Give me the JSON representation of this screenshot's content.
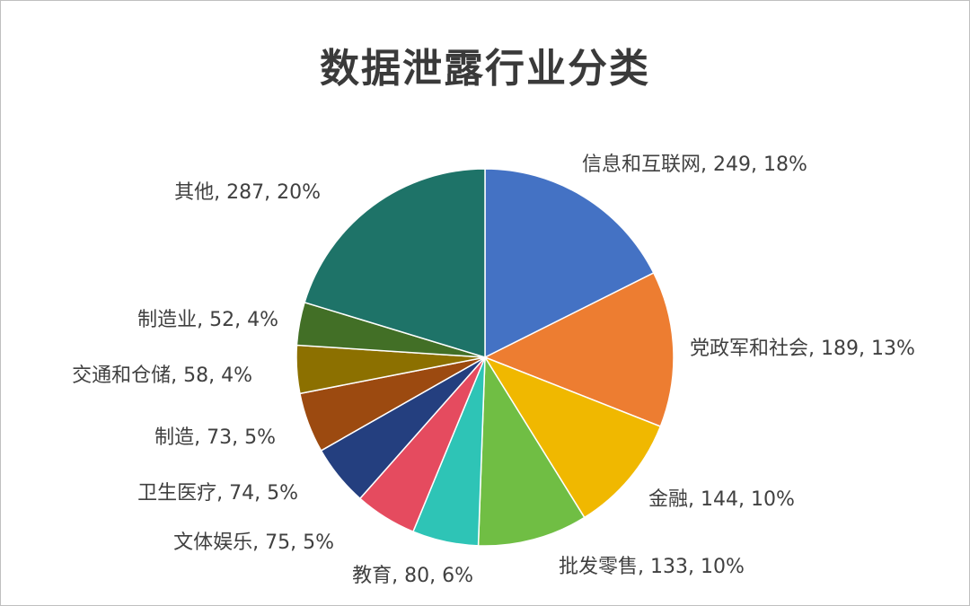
{
  "chart_data": {
    "type": "pie",
    "title": "数据泄露行业分类",
    "slices": [
      {
        "label": "信息和互联网",
        "value": 249,
        "percent": "18%",
        "color": "#4472C4"
      },
      {
        "label": "党政军和社会",
        "value": 189,
        "percent": "13%",
        "color": "#ED7D31"
      },
      {
        "label": "金融",
        "value": 144,
        "percent": "10%",
        "color": "#F0B800"
      },
      {
        "label": "批发零售",
        "value": 133,
        "percent": "10%",
        "color": "#70BE44"
      },
      {
        "label": "教育",
        "value": 80,
        "percent": "6%",
        "color": "#2EC4B6"
      },
      {
        "label": "文体娱乐",
        "value": 75,
        "percent": "5%",
        "color": "#E54B5F"
      },
      {
        "label": "卫生医疗",
        "value": 74,
        "percent": "5%",
        "color": "#243F7F"
      },
      {
        "label": "制造",
        "value": 73,
        "percent": "5%",
        "color": "#9C4A10"
      },
      {
        "label": "交通和仓储",
        "value": 58,
        "percent": "4%",
        "color": "#8C7000"
      },
      {
        "label": "制造业",
        "value": 52,
        "percent": "4%",
        "color": "#426F26"
      },
      {
        "label": "其他",
        "value": 287,
        "percent": "20%",
        "color": "#1E7368"
      }
    ],
    "legend": "none",
    "data_labels": "outside"
  }
}
